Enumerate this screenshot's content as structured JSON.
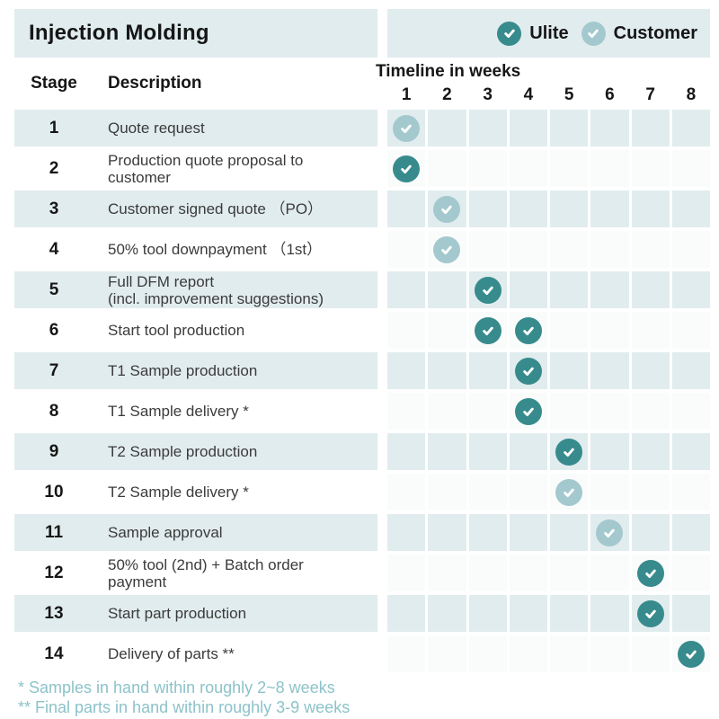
{
  "title": "Injection Molding",
  "legend": {
    "items": [
      {
        "label": "Ulite",
        "actor": "ulite"
      },
      {
        "label": "Customer",
        "actor": "customer"
      }
    ]
  },
  "columns": {
    "stage": "Stage",
    "description": "Description",
    "timeline": "Timeline in weeks"
  },
  "weeks": [
    "1",
    "2",
    "3",
    "4",
    "5",
    "6",
    "7",
    "8"
  ],
  "rows": [
    {
      "stage": "1",
      "description": "Quote request",
      "checks": [
        {
          "week": 1,
          "actor": "customer"
        }
      ]
    },
    {
      "stage": "2",
      "description": "Production quote proposal to\ncustomer",
      "checks": [
        {
          "week": 1,
          "actor": "ulite"
        }
      ]
    },
    {
      "stage": "3",
      "description": "Customer signed quote （PO）",
      "checks": [
        {
          "week": 2,
          "actor": "customer"
        }
      ]
    },
    {
      "stage": "4",
      "description": "50% tool downpayment （1st）",
      "checks": [
        {
          "week": 2,
          "actor": "customer"
        }
      ]
    },
    {
      "stage": "5",
      "description": "Full DFM report\n(incl. improvement suggestions)",
      "checks": [
        {
          "week": 3,
          "actor": "ulite"
        }
      ]
    },
    {
      "stage": "6",
      "description": "Start tool production",
      "checks": [
        {
          "week": 3,
          "actor": "ulite"
        },
        {
          "week": 4,
          "actor": "ulite"
        }
      ]
    },
    {
      "stage": "7",
      "description": "T1 Sample production",
      "checks": [
        {
          "week": 4,
          "actor": "ulite"
        }
      ]
    },
    {
      "stage": "8",
      "description": "T1 Sample delivery *",
      "checks": [
        {
          "week": 4,
          "actor": "ulite"
        }
      ]
    },
    {
      "stage": "9",
      "description": "T2 Sample production",
      "checks": [
        {
          "week": 5,
          "actor": "ulite"
        }
      ]
    },
    {
      "stage": "10",
      "description": "T2 Sample delivery *",
      "checks": [
        {
          "week": 5,
          "actor": "customer"
        }
      ]
    },
    {
      "stage": "11",
      "description": "Sample approval",
      "checks": [
        {
          "week": 6,
          "actor": "customer"
        }
      ]
    },
    {
      "stage": "12",
      "description": "50% tool (2nd) + Batch order\npayment",
      "checks": [
        {
          "week": 7,
          "actor": "ulite"
        }
      ]
    },
    {
      "stage": "13",
      "description": "Start part production",
      "checks": [
        {
          "week": 7,
          "actor": "ulite"
        }
      ]
    },
    {
      "stage": "14",
      "description": "Delivery of parts **",
      "checks": [
        {
          "week": 8,
          "actor": "ulite"
        }
      ]
    }
  ],
  "footnotes": [
    "* Samples in hand within roughly 2~8 weeks",
    "** Final parts in hand within roughly 3-9 weeks"
  ],
  "colors": {
    "ulite": "#388b8c",
    "customer": "#a3c9ce",
    "band": "#e1ecee",
    "footnote_text": "#8cc3c9"
  }
}
